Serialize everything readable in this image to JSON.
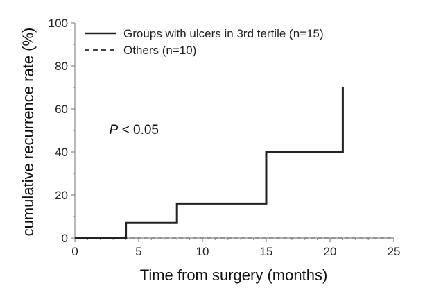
{
  "chart_data": {
    "type": "line",
    "step": true,
    "title": "",
    "xlabel": "Time from surgery (months)",
    "ylabel": "cumulative recurrence rate (%)",
    "xlim": [
      0,
      25
    ],
    "ylim": [
      0,
      100
    ],
    "xticks": [
      0,
      5,
      10,
      15,
      20,
      25
    ],
    "yticks": [
      0,
      20,
      40,
      60,
      80,
      100
    ],
    "grid": false,
    "legend_position": "top-left",
    "series": [
      {
        "name": "Groups with ulcers in 3rd tertile (n=15)",
        "style": "solid",
        "color": "#222222",
        "x": [
          0,
          4,
          8,
          15,
          21,
          21
        ],
        "y": [
          0,
          7,
          16,
          40,
          40,
          70
        ]
      },
      {
        "name": "Others (n=10)",
        "style": "dashed",
        "color": "#888888",
        "x": [
          0,
          25
        ],
        "y": [
          0,
          0
        ]
      }
    ],
    "annotations": [
      {
        "italic": "P",
        "text": " < 0.05",
        "x": 2.7,
        "y": 50
      }
    ]
  }
}
